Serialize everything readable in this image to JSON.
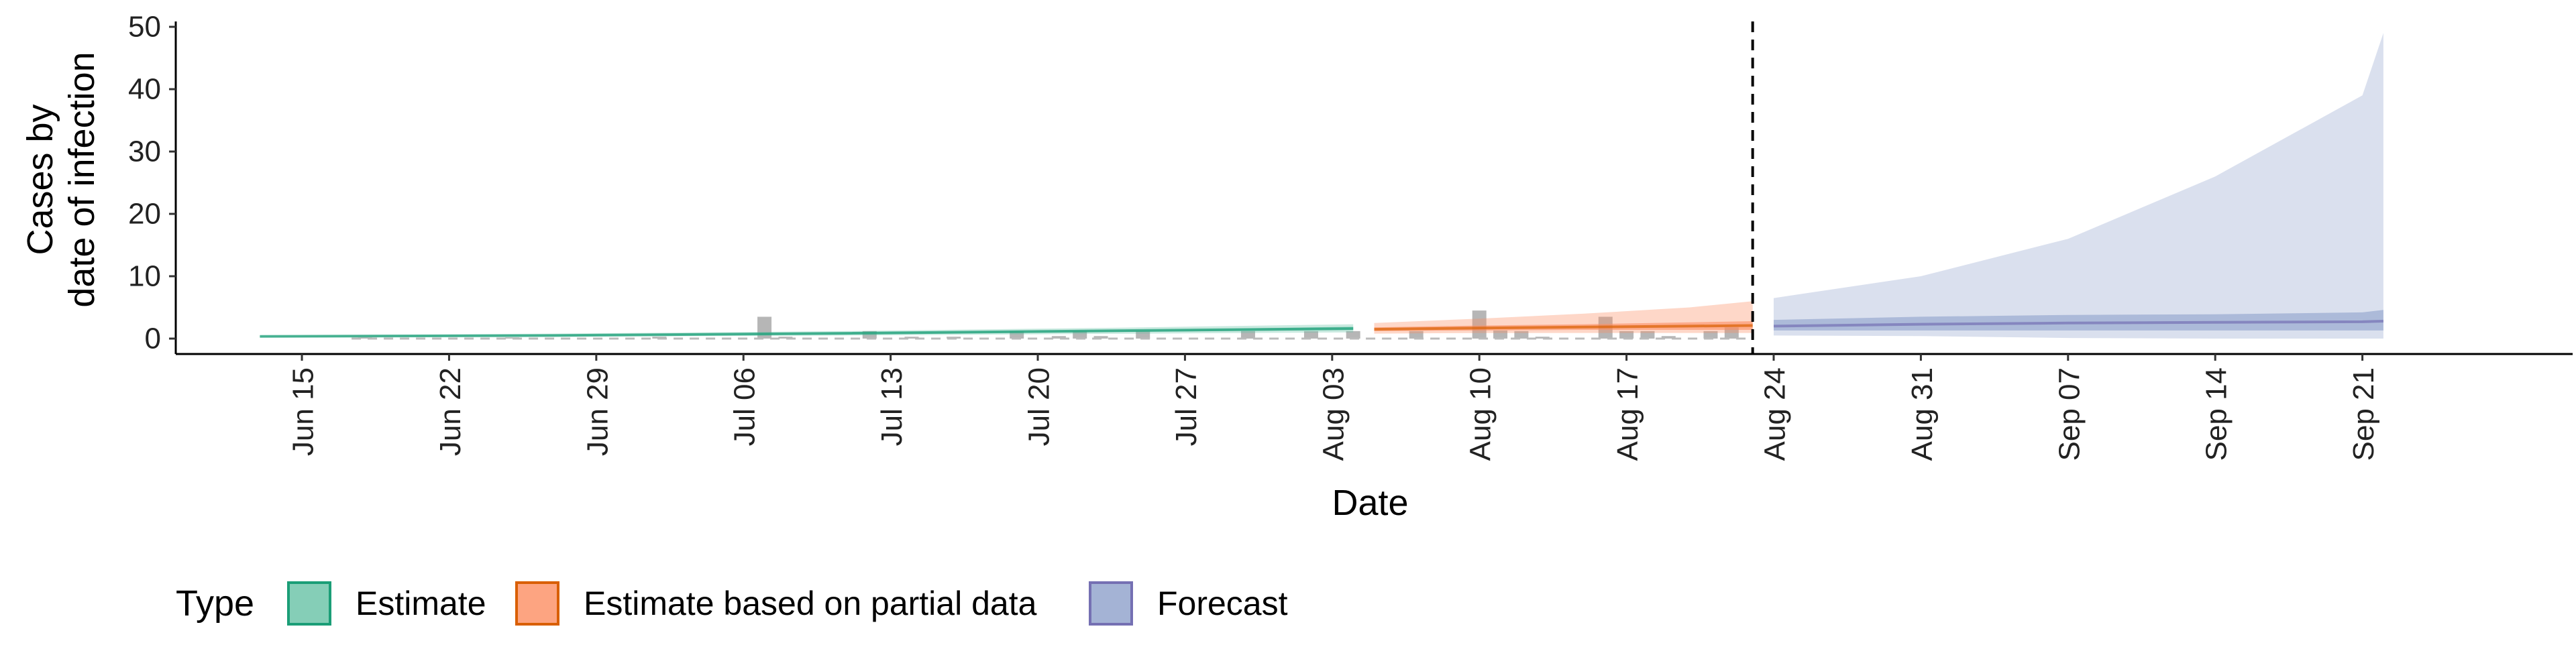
{
  "chart_data": {
    "type": "area",
    "title": "",
    "xlabel": "Date",
    "ylabel": [
      "Cases by",
      "date of infection"
    ],
    "ylim": [
      0,
      50
    ],
    "yticks": [
      0,
      10,
      20,
      30,
      40,
      50
    ],
    "x_range": [
      "2020-06-09",
      "2020-10-01"
    ],
    "x_ticks": [
      {
        "date": "2020-06-15",
        "label": "Jun 15"
      },
      {
        "date": "2020-06-22",
        "label": "Jun 22"
      },
      {
        "date": "2020-06-29",
        "label": "Jun 29"
      },
      {
        "date": "2020-07-06",
        "label": "Jul 06"
      },
      {
        "date": "2020-07-13",
        "label": "Jul 13"
      },
      {
        "date": "2020-07-20",
        "label": "Jul 20"
      },
      {
        "date": "2020-07-27",
        "label": "Jul 27"
      },
      {
        "date": "2020-08-03",
        "label": "Aug 03"
      },
      {
        "date": "2020-08-10",
        "label": "Aug 10"
      },
      {
        "date": "2020-08-17",
        "label": "Aug 17"
      },
      {
        "date": "2020-08-24",
        "label": "Aug 24"
      },
      {
        "date": "2020-08-31",
        "label": "Aug 31"
      },
      {
        "date": "2020-09-07",
        "label": "Sep 07"
      },
      {
        "date": "2020-09-14",
        "label": "Sep 14"
      },
      {
        "date": "2020-09-21",
        "label": "Sep 21"
      }
    ],
    "grid": false,
    "legend": {
      "title": "Type",
      "position": "bottom-left",
      "entries": [
        {
          "label": "Estimate",
          "fill": "#66C2A5",
          "stroke": "#1B9E77"
        },
        {
          "label": "Estimate based on partial data",
          "fill": "#FC8D62",
          "stroke": "#D95F02"
        },
        {
          "label": "Forecast",
          "fill": "#8DA0CB",
          "stroke": "#7570B3"
        }
      ]
    },
    "reference_line": {
      "date": "2020-08-23",
      "style": "dashed"
    },
    "series": [
      {
        "name": "Estimate",
        "color": "#1B9E77",
        "fill": "#66C2A5",
        "x": [
          "2020-06-13",
          "2020-06-27",
          "2020-07-11",
          "2020-07-25",
          "2020-08-04"
        ],
        "lower90": [
          0.2,
          0.3,
          0.5,
          0.8,
          1.0
        ],
        "upper90": [
          0.5,
          0.8,
          1.2,
          1.8,
          2.3
        ],
        "lower50": [
          0.3,
          0.4,
          0.7,
          1.1,
          1.4
        ],
        "upper50": [
          0.4,
          0.6,
          1.0,
          1.4,
          1.9
        ],
        "median": [
          0.35,
          0.5,
          0.85,
          1.3,
          1.6
        ]
      },
      {
        "name": "Estimate based on partial data",
        "color": "#D95F02",
        "fill": "#FC8D62",
        "x": [
          "2020-08-05",
          "2020-08-10",
          "2020-08-15",
          "2020-08-20",
          "2020-08-23"
        ],
        "lower90": [
          0.8,
          0.9,
          0.9,
          0.9,
          0.9
        ],
        "upper90": [
          2.5,
          3.2,
          4.0,
          5.0,
          6.0
        ],
        "lower50": [
          1.2,
          1.3,
          1.4,
          1.4,
          1.4
        ],
        "upper50": [
          1.8,
          2.1,
          2.3,
          2.6,
          2.8
        ],
        "median": [
          1.5,
          1.7,
          1.85,
          2.0,
          2.1
        ]
      },
      {
        "name": "Forecast",
        "color": "#7570B3",
        "fill": "#8DA0CB",
        "x": [
          "2020-08-24",
          "2020-08-31",
          "2020-09-07",
          "2020-09-14",
          "2020-09-21",
          "2020-09-22"
        ],
        "lower90": [
          0.5,
          0.4,
          0.1,
          0.0,
          0.0,
          0.0
        ],
        "upper90": [
          6.5,
          10.0,
          16.0,
          26.0,
          39.0,
          49.0
        ],
        "lower50": [
          1.3,
          1.3,
          1.3,
          1.3,
          1.3,
          1.3
        ],
        "upper50": [
          3.0,
          3.5,
          3.8,
          3.9,
          4.2,
          4.6
        ],
        "median": [
          2.0,
          2.3,
          2.5,
          2.6,
          2.7,
          2.8
        ]
      }
    ],
    "observed_cases": {
      "name": "Reported cases",
      "color": "#A9A9A9",
      "x": [
        "2020-06-18",
        "2020-06-25",
        "2020-07-02",
        "2020-07-07",
        "2020-07-08",
        "2020-07-12",
        "2020-07-14",
        "2020-07-16",
        "2020-07-19",
        "2020-07-21",
        "2020-07-22",
        "2020-07-23",
        "2020-07-25",
        "2020-07-30",
        "2020-08-02",
        "2020-08-04",
        "2020-08-07",
        "2020-08-10",
        "2020-08-11",
        "2020-08-12",
        "2020-08-13",
        "2020-08-16",
        "2020-08-17",
        "2020-08-18",
        "2020-08-19",
        "2020-08-21",
        "2020-08-22"
      ],
      "y": [
        0.2,
        0.2,
        0.3,
        3.5,
        0.3,
        1.2,
        0.3,
        0.3,
        1.2,
        0.4,
        1.2,
        0.4,
        1.2,
        1.2,
        1.2,
        1.2,
        1.2,
        4.5,
        1.3,
        1.2,
        0.3,
        3.5,
        1.2,
        1.2,
        0.4,
        1.2,
        1.8
      ]
    }
  }
}
